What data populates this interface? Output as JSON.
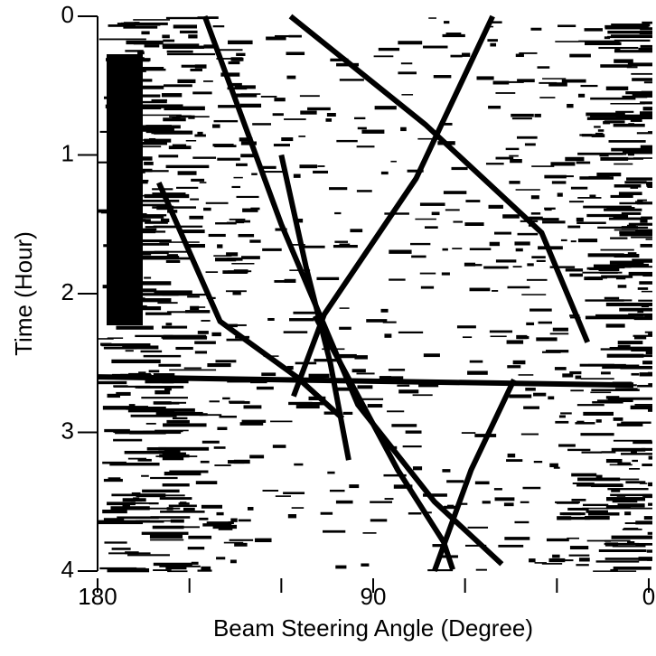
{
  "chart_data": {
    "type": "bearing-time",
    "xlabel": "Beam Steering Angle (Degree)",
    "ylabel": "Time (Hour)",
    "xlim": [
      180,
      0
    ],
    "xticks": [
      180,
      90,
      0
    ],
    "xminorticks": [
      150,
      120,
      60,
      30
    ],
    "ylim": [
      4,
      0
    ],
    "yticks": [
      0,
      1,
      2,
      3,
      4
    ],
    "color": "#000000",
    "series": [
      {
        "x": [
          145,
          120,
          95,
          70,
          48
        ],
        "values": [
          0,
          1.5,
          2.8,
          3.5,
          3.95
        ]
      },
      {
        "x": [
          117,
          73,
          35,
          20
        ],
        "values": [
          0,
          0.78,
          1.56,
          2.35
        ]
      },
      {
        "x": [
          51,
          76,
          106,
          116
        ],
        "values": [
          0,
          1.17,
          2.15,
          2.74
        ]
      },
      {
        "x": [
          109,
          82,
          67,
          64
        ],
        "values": [
          2.16,
          3.27,
          3.79,
          3.99
        ]
      },
      {
        "x": [
          44,
          58,
          70
        ],
        "values": [
          2.62,
          3.27,
          4
        ]
      },
      {
        "x": [
          180,
          5
        ],
        "values": [
          2.6,
          2.66
        ]
      },
      {
        "x": [
          160,
          140,
          115,
          100
        ],
        "values": [
          1.2,
          2.2,
          2.6,
          2.9
        ]
      },
      {
        "x": [
          120,
          112,
          104,
          98
        ],
        "values": [
          1.0,
          1.8,
          2.5,
          3.2
        ]
      }
    ]
  }
}
